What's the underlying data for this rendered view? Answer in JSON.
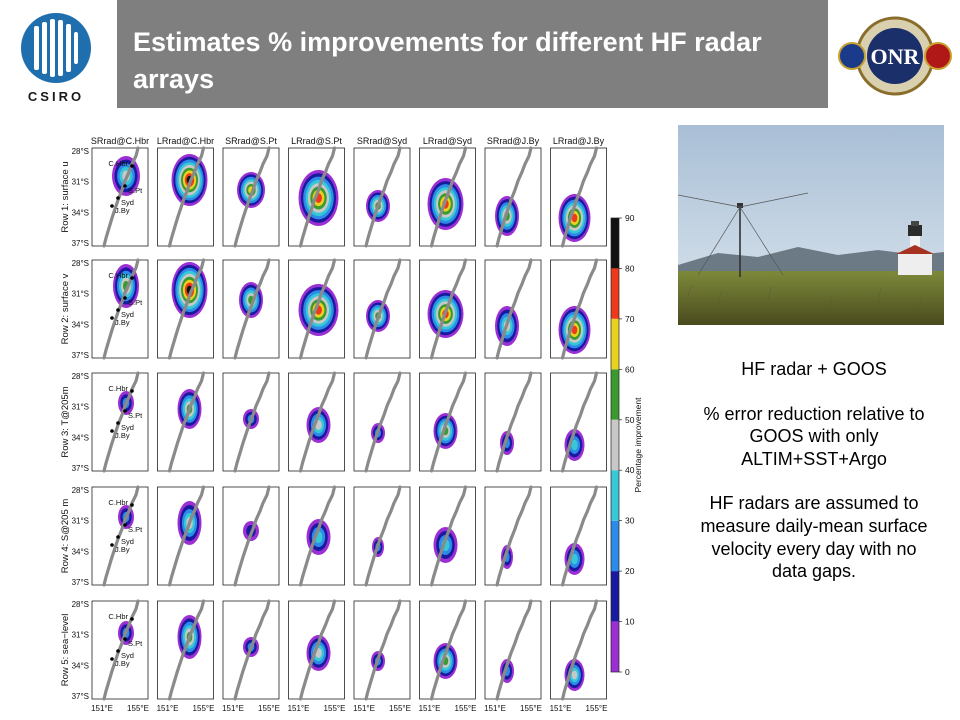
{
  "title": "Estimates % improvements for different HF radar arrays",
  "logos": {
    "left_text": "CSIRO",
    "right_seal_text": "OFFICE OF NAVAL RESEARCH",
    "right_letters": "ONR"
  },
  "colors": {
    "title_bar": "#7f7f7f",
    "title_text": "#ffffff"
  },
  "figure": {
    "panel_titles": [
      "SRrad@C.Hbr",
      "LRrad@C.Hbr",
      "SRrad@S.Pt",
      "LRrad@S.Pt",
      "SRrad@Syd",
      "LRrad@Syd",
      "SRrad@J.By",
      "LRrad@J.By"
    ],
    "row_labels": [
      "Row 1: surface u",
      "Row 2: surface v",
      "Row 3: T@205m",
      "Row 4: S@205 m",
      "Row 5: sea−level"
    ],
    "lat_ticks": [
      "28°S",
      "31°S",
      "34°S",
      "37°S"
    ],
    "lon_ticks": [
      "151°E",
      "155°E"
    ],
    "site_labels": [
      "C.Hbr",
      "S.Pt",
      "Syd",
      "J.By"
    ],
    "colorbar": {
      "label": "Percentage improvement",
      "ticks": [
        "0",
        "10",
        "20",
        "30",
        "40",
        "50",
        "60",
        "70",
        "80",
        "90"
      ],
      "colors": [
        "#ffffff",
        "#9b2fd4",
        "#1a1aa0",
        "#2c8be8",
        "#37c8d8",
        "#c8c8c8",
        "#3a9a30",
        "#e8d21e",
        "#ee3a1a",
        "#111111"
      ]
    }
  },
  "side_text": {
    "line1": "HF radar + GOOS",
    "line2": "% error reduction relative to GOOS with only ALTIM+SST+Argo",
    "line3": "HF radars are assumed to measure daily-mean surface velocity every day with no data gaps."
  }
}
